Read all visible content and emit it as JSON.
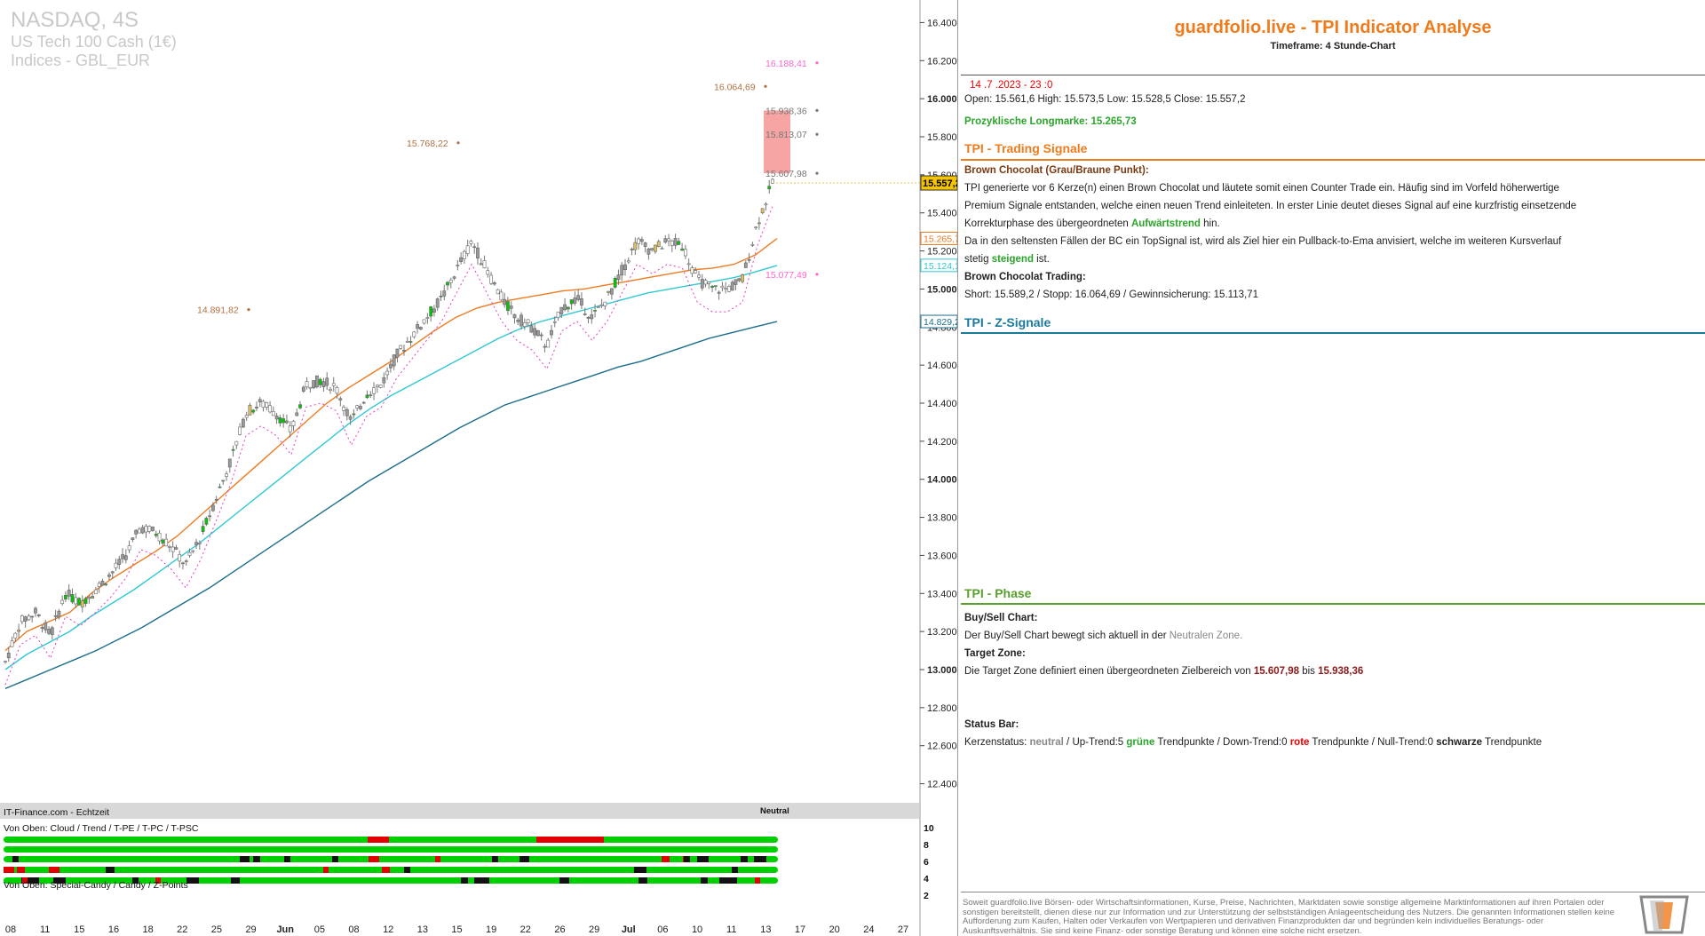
{
  "chart_meta": {
    "symbol": "NASDAQ, 4S",
    "name": "US Tech 100 Cash (1€)",
    "group": "Indices - GBL_EUR",
    "source": "IT-Finance.com - Echtzeit",
    "status_label": "Neutral",
    "panel_label_1": "Von Oben: Cloud / Trend / T-PE / T-PC / T-PSC",
    "panel_label_2": "Von Oben: Special-Candy / Candy / Z-Points",
    "current_price_tag": "15.557,2"
  },
  "chart_data": {
    "type": "candlestick",
    "title": "NASDAQ, 4S",
    "ylim": [
      12300,
      16500
    ],
    "y_ticks": [
      "16.400",
      "16.200",
      "16.000",
      "15.800",
      "15.600",
      "15.400",
      "15.200",
      "15.000",
      "14.800",
      "14.600",
      "14.400",
      "14.200",
      "14.000",
      "13.800",
      "13.600",
      "13.400",
      "13.200",
      "13.000",
      "12.800",
      "12.600",
      "12.400"
    ],
    "y_tick_values": [
      16400,
      16200,
      16000,
      15800,
      15600,
      15400,
      15200,
      15000,
      14800,
      14600,
      14400,
      14200,
      14000,
      13800,
      13600,
      13400,
      13200,
      13000,
      12800,
      12600,
      12400
    ],
    "x_ticks": [
      "08",
      "11",
      "15",
      "16",
      "18",
      "22",
      "25",
      "29",
      "Jun",
      "05",
      "08",
      "12",
      "13",
      "15",
      "19",
      "22",
      "26",
      "29",
      "Jul",
      "06",
      "10",
      "11",
      "13",
      "17",
      "20",
      "24",
      "27"
    ],
    "close_path": [
      13040,
      13250,
      13300,
      13180,
      13400,
      13350,
      13420,
      13500,
      13600,
      13750,
      13720,
      13650,
      13550,
      13700,
      13900,
      14100,
      14350,
      14400,
      14350,
      14250,
      14500,
      14520,
      14480,
      14300,
      14450,
      14500,
      14650,
      14750,
      14850,
      14950,
      15100,
      15250,
      15100,
      14950,
      14850,
      14800,
      14700,
      14900,
      14950,
      14850,
      14950,
      15100,
      15250,
      15200,
      15250,
      15230,
      15050,
      15000,
      15000,
      15050,
      15350,
      15557
    ],
    "series": [
      {
        "name": "",
        "color": "#ee7b21",
        "values": [
          13100,
          13200,
          13250,
          13300,
          13400,
          13480,
          13550,
          13620,
          13700,
          13800,
          13900,
          14000,
          14100,
          14200,
          14300,
          14400,
          14480,
          14550,
          14620,
          14700,
          14780,
          14850,
          14900,
          14930,
          14950,
          14970,
          14990,
          15000,
          15020,
          15040,
          15060,
          15080,
          15100,
          15110,
          15130,
          15180,
          15265
        ]
      },
      {
        "name": "",
        "color": "#2fc9d4",
        "values": [
          13000,
          13080,
          13140,
          13200,
          13280,
          13350,
          13420,
          13500,
          13580,
          13660,
          13750,
          13840,
          13930,
          14020,
          14110,
          14200,
          14290,
          14370,
          14440,
          14500,
          14560,
          14620,
          14680,
          14740,
          14790,
          14830,
          14860,
          14890,
          14920,
          14950,
          14980,
          15000,
          15020,
          15040,
          15060,
          15090,
          15124
        ]
      },
      {
        "name": "",
        "color": "#1b6e8c",
        "values": [
          12900,
          12950,
          13000,
          13050,
          13100,
          13160,
          13220,
          13290,
          13360,
          13430,
          13510,
          13590,
          13670,
          13750,
          13830,
          13910,
          13990,
          14060,
          14130,
          14200,
          14270,
          14330,
          14390,
          14430,
          14470,
          14510,
          14550,
          14590,
          14620,
          14660,
          14700,
          14740,
          14770,
          14800,
          14829
        ]
      }
    ],
    "axis_tags": [
      {
        "label": "15.265,7",
        "value": 15265.7,
        "color": "#ee7b21"
      },
      {
        "label": "15.124,1",
        "value": 15124.1,
        "color": "#2fc9d4"
      },
      {
        "label": "14.829,2",
        "value": 14829.2,
        "color": "#1b6e8c"
      }
    ],
    "annotations": [
      {
        "label": "16.188,41",
        "value": 16188.41,
        "color": "#ff66cc"
      },
      {
        "label": "16.064,69",
        "value": 16064.69,
        "color": "#b07040"
      },
      {
        "label": "15.938,36",
        "value": 15938.36,
        "color": "#777777"
      },
      {
        "label": "15.813,07",
        "value": 15813.07,
        "color": "#777777"
      },
      {
        "label": "15.768,22",
        "value": 15768.22,
        "color": "#b07040"
      },
      {
        "label": "15.607,98",
        "value": 15607.98,
        "color": "#777777"
      },
      {
        "label": "15.077,49",
        "value": 15077.49,
        "color": "#ff66cc"
      },
      {
        "label": "14.891,82",
        "value": 14891.82,
        "color": "#b07040"
      }
    ],
    "target_zone": [
      15607.98,
      15938.36
    ],
    "y_ticks_lower": [
      "10",
      "8",
      "6",
      "4",
      "2"
    ]
  },
  "panel": {
    "title": "guardfolio.live - TPI Indicator Analyse",
    "timeframe": "Timeframe: 4 Stunde-Chart",
    "date": "14 .7 .2023 - 23 :0",
    "ohlc": "Open: 15.561,6    High: 15.573,5    Low: 15.528,5    Close: 15.557,2",
    "longmarke": "Prozyklische Longmarke: 15.265,73",
    "sec_trading": "TPI - Trading Signale",
    "bc_title": "Brown Chocolat (Grau/Braune Punkt):",
    "bc_l1": "TPI generierte vor 6  Kerze(n) einen Brown Chocolat und läutete somit einen Counter Trade ein. Häufig sind im Vorfeld höherwertige",
    "bc_l2": "Premium Signale entstanden, welche einen neuen Trend einleiteten. In erster Linie deutet dieses Signal auf eine kurzfristig einsetzende",
    "bc_l3a": "Korrekturphase des übergeordneten ",
    "bc_l3b": "Aufwärtstrend",
    "bc_l3c": "  hin.",
    "bc_l4": "Da in den seltensten Fällen der BC ein TopSignal ist, wird als Ziel hier ein Pullback-to-Ema anvisiert, welche im weiteren Kursverlauf",
    "bc_l5a": "stetig ",
    "bc_l5b": "steigend",
    "bc_l5c": " ist.",
    "bct_title": "Brown Chocolat Trading:",
    "bct_line": "Short: 15.589,2  / Stopp: 16.064,69  / Gewinnsicherung: 15.113,71",
    "sec_z": "TPI - Z-Signale",
    "sec_phase": "TPI - Phase",
    "bs_title": "Buy/Sell Chart:",
    "bs_line_a": "Der Buy/Sell Chart bewegt sich aktuell in der ",
    "bs_line_b": "Neutralen Zone.",
    "tz_title": "Target Zone:",
    "tz_line_a": "Die Target Zone definiert einen übergeordneten Zielbereich von ",
    "tz_low": "15.607,98",
    "tz_mid": "  bis ",
    "tz_high": "15.938,36",
    "sb_title": "Status Bar:",
    "sb_a": "Kerzenstatus: ",
    "sb_neutral": "neutral",
    "sb_b": "  / Up-Trend:5 ",
    "sb_gruene": "grüne",
    "sb_c": " Trendpunkte  / Down-Trend:0 ",
    "sb_rote": "rote",
    "sb_d": " Trendpunkte / Null-Trend:0 ",
    "sb_schwarze": "schwarze",
    "sb_e": " Trendpunkte",
    "footer": "Soweit guardfolio.live Börsen- oder Wirtschaftsinformationen, Kurse, Preise, Nachrichten, Marktdaten sowie sonstige allgemeine Marktinformationen auf ihren Portalen oder sonstigen bereitstellt, dienen diese nur zur Information und zur Unterstützung der selbstständigen Anlageentscheidung des Nutzers. Die genannten Informationen stellen keine Aufforderung zum Kaufen, Halten oder Verkaufen von Wertpapieren und derivativen Finanzprodukten dar und begründen kein individuelles Beratungs- oder Auskunftsverhältnis. Sie sind keine Finanz- oder sonstige Beratung und können eine solche nicht ersetzen."
  },
  "colors": {
    "orange": "#f07b1c",
    "green": "#5aa02c",
    "teal": "#1b7a9c",
    "up": "#00c800",
    "down": "#d00000"
  }
}
